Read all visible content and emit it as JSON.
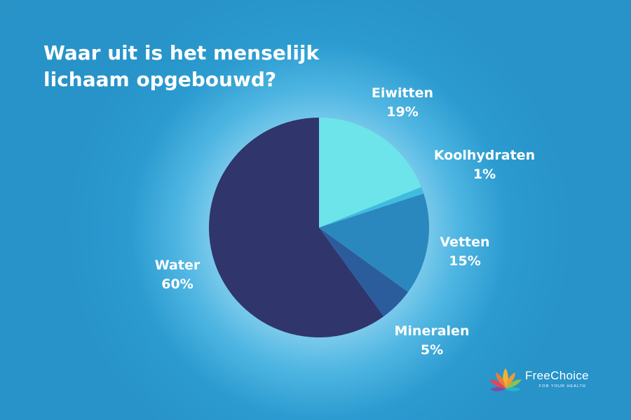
{
  "title_lines": [
    "Waar uit is het menselijk",
    "lichaam opgebouwd?"
  ],
  "chart_data": {
    "type": "pie",
    "start_angle_deg": 0,
    "direction": "clockwise",
    "slices": [
      {
        "label": "Eiwitten",
        "value": 19,
        "value_label": "19%",
        "color": "#6ce4ea"
      },
      {
        "label": "Koolhydraten",
        "value": 1,
        "value_label": "1%",
        "color": "#3fbde0"
      },
      {
        "label": "Vetten",
        "value": 15,
        "value_label": "15%",
        "color": "#2b88be"
      },
      {
        "label": "Mineralen",
        "value": 5,
        "value_label": "5%",
        "color": "#2b5d9c"
      },
      {
        "label": "Water",
        "value": 60,
        "value_label": "60%",
        "color": "#30356b"
      }
    ]
  },
  "brand": {
    "name": "FreeChoice",
    "tagline": "FOR YOUR HEALTH",
    "icon": "lotus-logo-icon"
  }
}
